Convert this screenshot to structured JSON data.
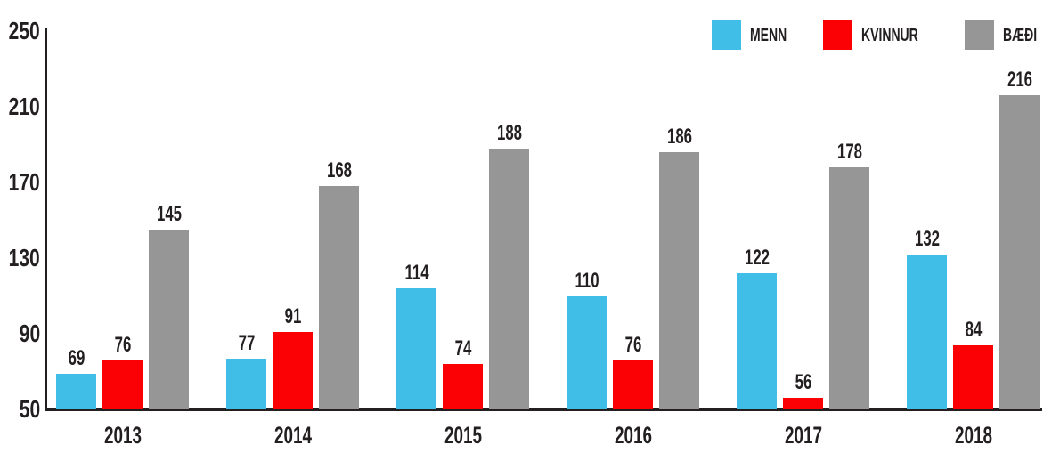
{
  "chart_data": {
    "type": "bar",
    "title": "",
    "xlabel": "",
    "ylabel": "",
    "categories": [
      "2013",
      "2014",
      "2015",
      "2016",
      "2017",
      "2018"
    ],
    "series": [
      {
        "name": "MENN",
        "color": "#41BEE8",
        "values": [
          69,
          77,
          114,
          110,
          122,
          132
        ]
      },
      {
        "name": "KVINNUR",
        "color": "#FB0005",
        "values": [
          76,
          91,
          74,
          76,
          56,
          84
        ]
      },
      {
        "name": "BÆÐI",
        "color": "#969696",
        "values": [
          145,
          168,
          188,
          186,
          178,
          216
        ]
      }
    ],
    "ylim": [
      50,
      250
    ],
    "yticks": [
      250,
      210,
      170,
      130,
      90,
      50
    ],
    "grid": false,
    "legend_position": "top-right",
    "value_labels": true,
    "axis_color": "#231F20",
    "text_color": "#231F20",
    "background_color": "#FFFFFF"
  }
}
